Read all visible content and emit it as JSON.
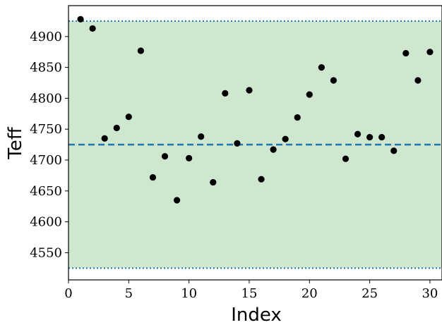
{
  "chart_data": {
    "type": "scatter",
    "title": "",
    "xlabel": "Index",
    "ylabel": "Teff",
    "xlim": [
      0,
      31
    ],
    "ylim": [
      4506,
      4950
    ],
    "xticks": [
      0,
      5,
      10,
      15,
      20,
      25,
      30
    ],
    "yticks": [
      4550,
      4600,
      4650,
      4700,
      4750,
      4800,
      4850,
      4900
    ],
    "grid": false,
    "legend": "none",
    "band": {
      "lower": 4525,
      "upper": 4925,
      "fill_color": "#cfe6cf",
      "line_color": "#1f77b4",
      "line_style": "dotted"
    },
    "mean_line": {
      "y": 4725,
      "color": "#1f77b4",
      "line_style": "dashed"
    },
    "marker_color": "#000000",
    "series": [
      {
        "x": [
          1,
          2,
          3,
          4,
          5,
          6,
          7,
          8,
          9,
          10,
          11,
          12,
          13,
          14,
          15,
          16,
          17,
          18,
          19,
          20,
          21,
          22,
          23,
          24,
          25,
          26,
          27,
          28,
          29,
          30
        ],
        "y": [
          4928,
          4913,
          4735,
          4752,
          4770,
          4877,
          4672,
          4706,
          4635,
          4703,
          4738,
          4664,
          4808,
          4727,
          4813,
          4669,
          4717,
          4734,
          4769,
          4806,
          4850,
          4829,
          4702,
          4742,
          4737,
          4737,
          4715,
          4873,
          4829,
          4875
        ]
      }
    ]
  }
}
